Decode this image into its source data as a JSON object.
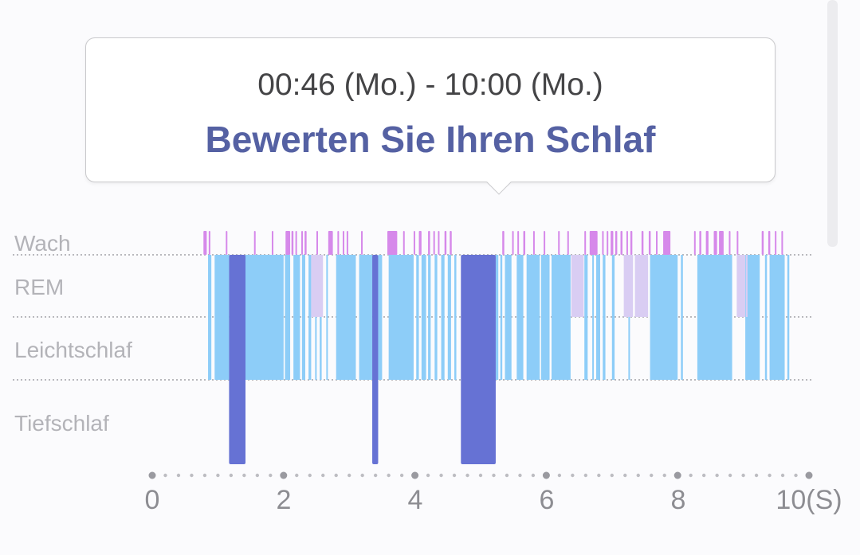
{
  "tooltip": {
    "time_range": "00:46 (Mo.) - 10:00 (Mo.)",
    "rate_link": "Bewerten Sie Ihren Schlaf"
  },
  "stages": {
    "wake": "Wach",
    "rem": "REM",
    "light": "Leichtschlaf",
    "deep": "Tiefschlaf"
  },
  "colors": {
    "wake": "#d689ea",
    "rem": "#d9cdf3",
    "light": "#8dcdf8",
    "deep": "#6672d4",
    "dotted_line": "#b8b8bd"
  },
  "x_axis": {
    "ticks": [
      "0",
      "2",
      "4",
      "6",
      "8",
      "10(S)"
    ],
    "min": 0,
    "max": 10,
    "unit": "hours"
  },
  "chart_data": {
    "type": "hypnogram",
    "x_range_hours": [
      0,
      10
    ],
    "deep_periods_hours": [
      [
        1.17,
        1.42
      ],
      [
        3.35,
        3.44
      ],
      [
        4.7,
        5.23
      ]
    ],
    "light_blocks_hours": [
      [
        0.85,
        0.9
      ],
      [
        0.95,
        1.17
      ],
      [
        1.42,
        2.0
      ],
      [
        2.02,
        2.1
      ],
      [
        2.15,
        2.25
      ],
      [
        2.28,
        2.33
      ],
      [
        2.38,
        2.42
      ],
      [
        2.48,
        2.5
      ],
      [
        2.55,
        2.58
      ],
      [
        2.65,
        2.67
      ],
      [
        2.8,
        3.1
      ],
      [
        3.15,
        3.35
      ],
      [
        3.44,
        3.5
      ],
      [
        3.6,
        3.98
      ],
      [
        4.02,
        4.06
      ],
      [
        4.1,
        4.17
      ],
      [
        4.2,
        4.24
      ],
      [
        4.3,
        4.34
      ],
      [
        4.4,
        4.45
      ],
      [
        4.5,
        4.55
      ],
      [
        4.6,
        4.63
      ],
      [
        5.23,
        5.27
      ],
      [
        5.3,
        5.33
      ],
      [
        5.37,
        5.47
      ],
      [
        5.55,
        5.65
      ],
      [
        5.7,
        5.9
      ],
      [
        5.92,
        6.05
      ],
      [
        6.08,
        6.37
      ],
      [
        6.58,
        6.63
      ],
      [
        6.7,
        6.72
      ],
      [
        6.76,
        6.82
      ],
      [
        6.86,
        6.9
      ],
      [
        7.0,
        7.04
      ],
      [
        7.25,
        7.27
      ],
      [
        7.58,
        8.0
      ],
      [
        8.05,
        8.08
      ],
      [
        8.3,
        8.83
      ],
      [
        9.03,
        9.25
      ],
      [
        9.33,
        9.36
      ],
      [
        9.4,
        9.63
      ],
      [
        9.67,
        9.7
      ]
    ],
    "rem_blocks_hours": [
      [
        2.42,
        2.6
      ],
      [
        6.38,
        6.57
      ],
      [
        7.18,
        7.32
      ],
      [
        7.35,
        7.55
      ],
      [
        8.9,
        9.03
      ],
      [
        9.04,
        9.06
      ]
    ],
    "wake_marks_hours": [
      [
        0.78,
        0.83
      ],
      [
        0.86,
        0.88
      ],
      [
        1.12,
        1.14
      ],
      [
        1.55,
        1.57
      ],
      [
        1.82,
        1.84
      ],
      [
        2.03,
        2.1
      ],
      [
        2.12,
        2.15
      ],
      [
        2.18,
        2.2
      ],
      [
        2.27,
        2.29
      ],
      [
        2.32,
        2.35
      ],
      [
        2.5,
        2.52
      ],
      [
        2.68,
        2.75
      ],
      [
        2.82,
        2.84
      ],
      [
        2.9,
        2.92
      ],
      [
        2.96,
        2.98
      ],
      [
        3.18,
        3.2
      ],
      [
        3.58,
        3.73
      ],
      [
        3.82,
        3.84
      ],
      [
        3.98,
        4.0
      ],
      [
        4.06,
        4.1
      ],
      [
        4.2,
        4.23
      ],
      [
        4.28,
        4.3
      ],
      [
        4.35,
        4.37
      ],
      [
        4.45,
        4.48
      ],
      [
        4.53,
        4.56
      ],
      [
        5.33,
        5.36
      ],
      [
        5.48,
        5.5
      ],
      [
        5.56,
        5.58
      ],
      [
        5.65,
        5.68
      ],
      [
        5.8,
        5.82
      ],
      [
        5.96,
        5.98
      ],
      [
        6.18,
        6.2
      ],
      [
        6.32,
        6.34
      ],
      [
        6.58,
        6.6
      ],
      [
        6.66,
        6.78
      ],
      [
        6.85,
        6.87
      ],
      [
        6.92,
        6.94
      ],
      [
        6.98,
        7.02
      ],
      [
        7.05,
        7.08
      ],
      [
        7.13,
        7.16
      ],
      [
        7.22,
        7.24
      ],
      [
        7.28,
        7.31
      ],
      [
        7.45,
        7.48
      ],
      [
        7.56,
        7.59
      ],
      [
        7.67,
        7.69
      ],
      [
        7.78,
        7.89
      ],
      [
        8.25,
        8.27
      ],
      [
        8.33,
        8.36
      ],
      [
        8.43,
        8.47
      ],
      [
        8.55,
        8.6
      ],
      [
        8.63,
        8.7
      ],
      [
        8.78,
        8.8
      ],
      [
        8.9,
        8.92
      ],
      [
        9.28,
        9.31
      ],
      [
        9.38,
        9.41
      ],
      [
        9.48,
        9.5
      ],
      [
        9.58,
        9.6
      ]
    ]
  }
}
